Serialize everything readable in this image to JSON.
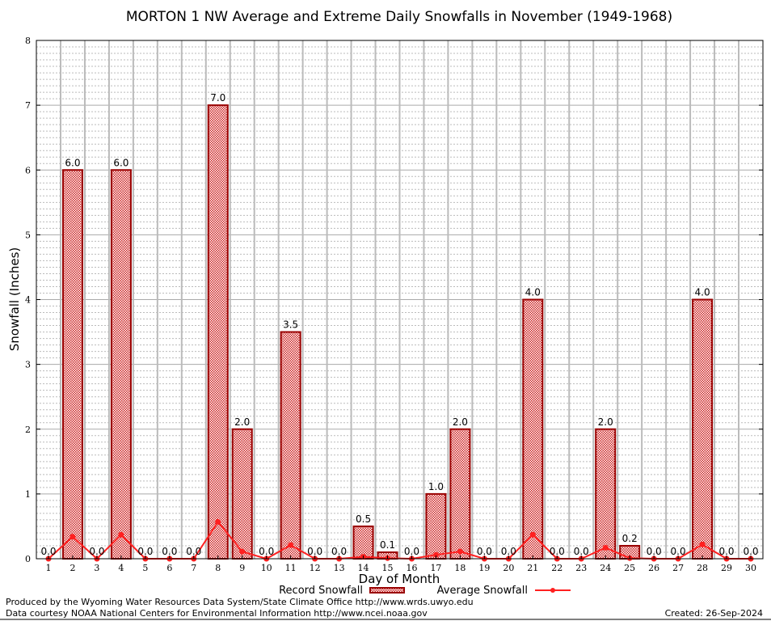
{
  "chart_data": {
    "type": "bar",
    "title": "MORTON 1 NW Average and Extreme Daily Snowfalls in November (1949-1968)",
    "xlabel": "Day of Month",
    "ylabel": "Snowfall (Inches)",
    "ylim": [
      0,
      8
    ],
    "yticks": [
      0,
      1,
      2,
      3,
      4,
      5,
      6,
      7,
      8
    ],
    "grid": true,
    "legend_placement": "bottom",
    "categories": [
      1,
      2,
      3,
      4,
      5,
      6,
      7,
      8,
      9,
      10,
      11,
      12,
      13,
      14,
      15,
      16,
      17,
      18,
      19,
      20,
      21,
      22,
      23,
      24,
      25,
      26,
      27,
      28,
      29,
      30
    ],
    "series": [
      {
        "name": "Record Snowfall",
        "kind": "bar",
        "color": "#990000",
        "values": [
          0.0,
          6.0,
          0.0,
          6.0,
          0.0,
          0.0,
          0.0,
          7.0,
          2.0,
          0.0,
          3.5,
          0.0,
          0.0,
          0.5,
          0.1,
          0.0,
          1.0,
          2.0,
          0.0,
          0.0,
          4.0,
          0.0,
          0.0,
          2.0,
          0.2,
          0.0,
          0.0,
          4.0,
          0.0,
          0.0
        ],
        "labels": [
          "0.0",
          "6.0",
          "0.0",
          "6.0",
          "0.0",
          "0.0",
          "0.0",
          "7.0",
          "2.0",
          "0.0",
          "3.5",
          "0.0",
          "0.0",
          "0.5",
          "0.1",
          "0.0",
          "1.0",
          "2.0",
          "0.0",
          "0.0",
          "4.0",
          "0.0",
          "0.0",
          "2.0",
          "0.2",
          "0.0",
          "0.0",
          "4.0",
          "0.0",
          "0.0"
        ]
      },
      {
        "name": "Average Snowfall",
        "kind": "line",
        "color": "#ff2020",
        "values": [
          0.0,
          0.34,
          0.0,
          0.37,
          0.0,
          0.0,
          0.0,
          0.57,
          0.11,
          0.0,
          0.21,
          0.0,
          0.0,
          0.03,
          0.01,
          0.0,
          0.06,
          0.11,
          0.0,
          0.0,
          0.37,
          0.0,
          0.0,
          0.17,
          0.01,
          0.0,
          0.0,
          0.22,
          0.0,
          0.0
        ]
      }
    ]
  },
  "footer": {
    "produced_by": "Produced by the Wyoming Water Resources Data System/State Climate Office http://www.wrds.uwyo.edu",
    "courtesy": "Data courtesy NOAA National Centers for Environmental Information http://www.ncei.noaa.gov",
    "created": "Created:  26-Sep-2024"
  }
}
